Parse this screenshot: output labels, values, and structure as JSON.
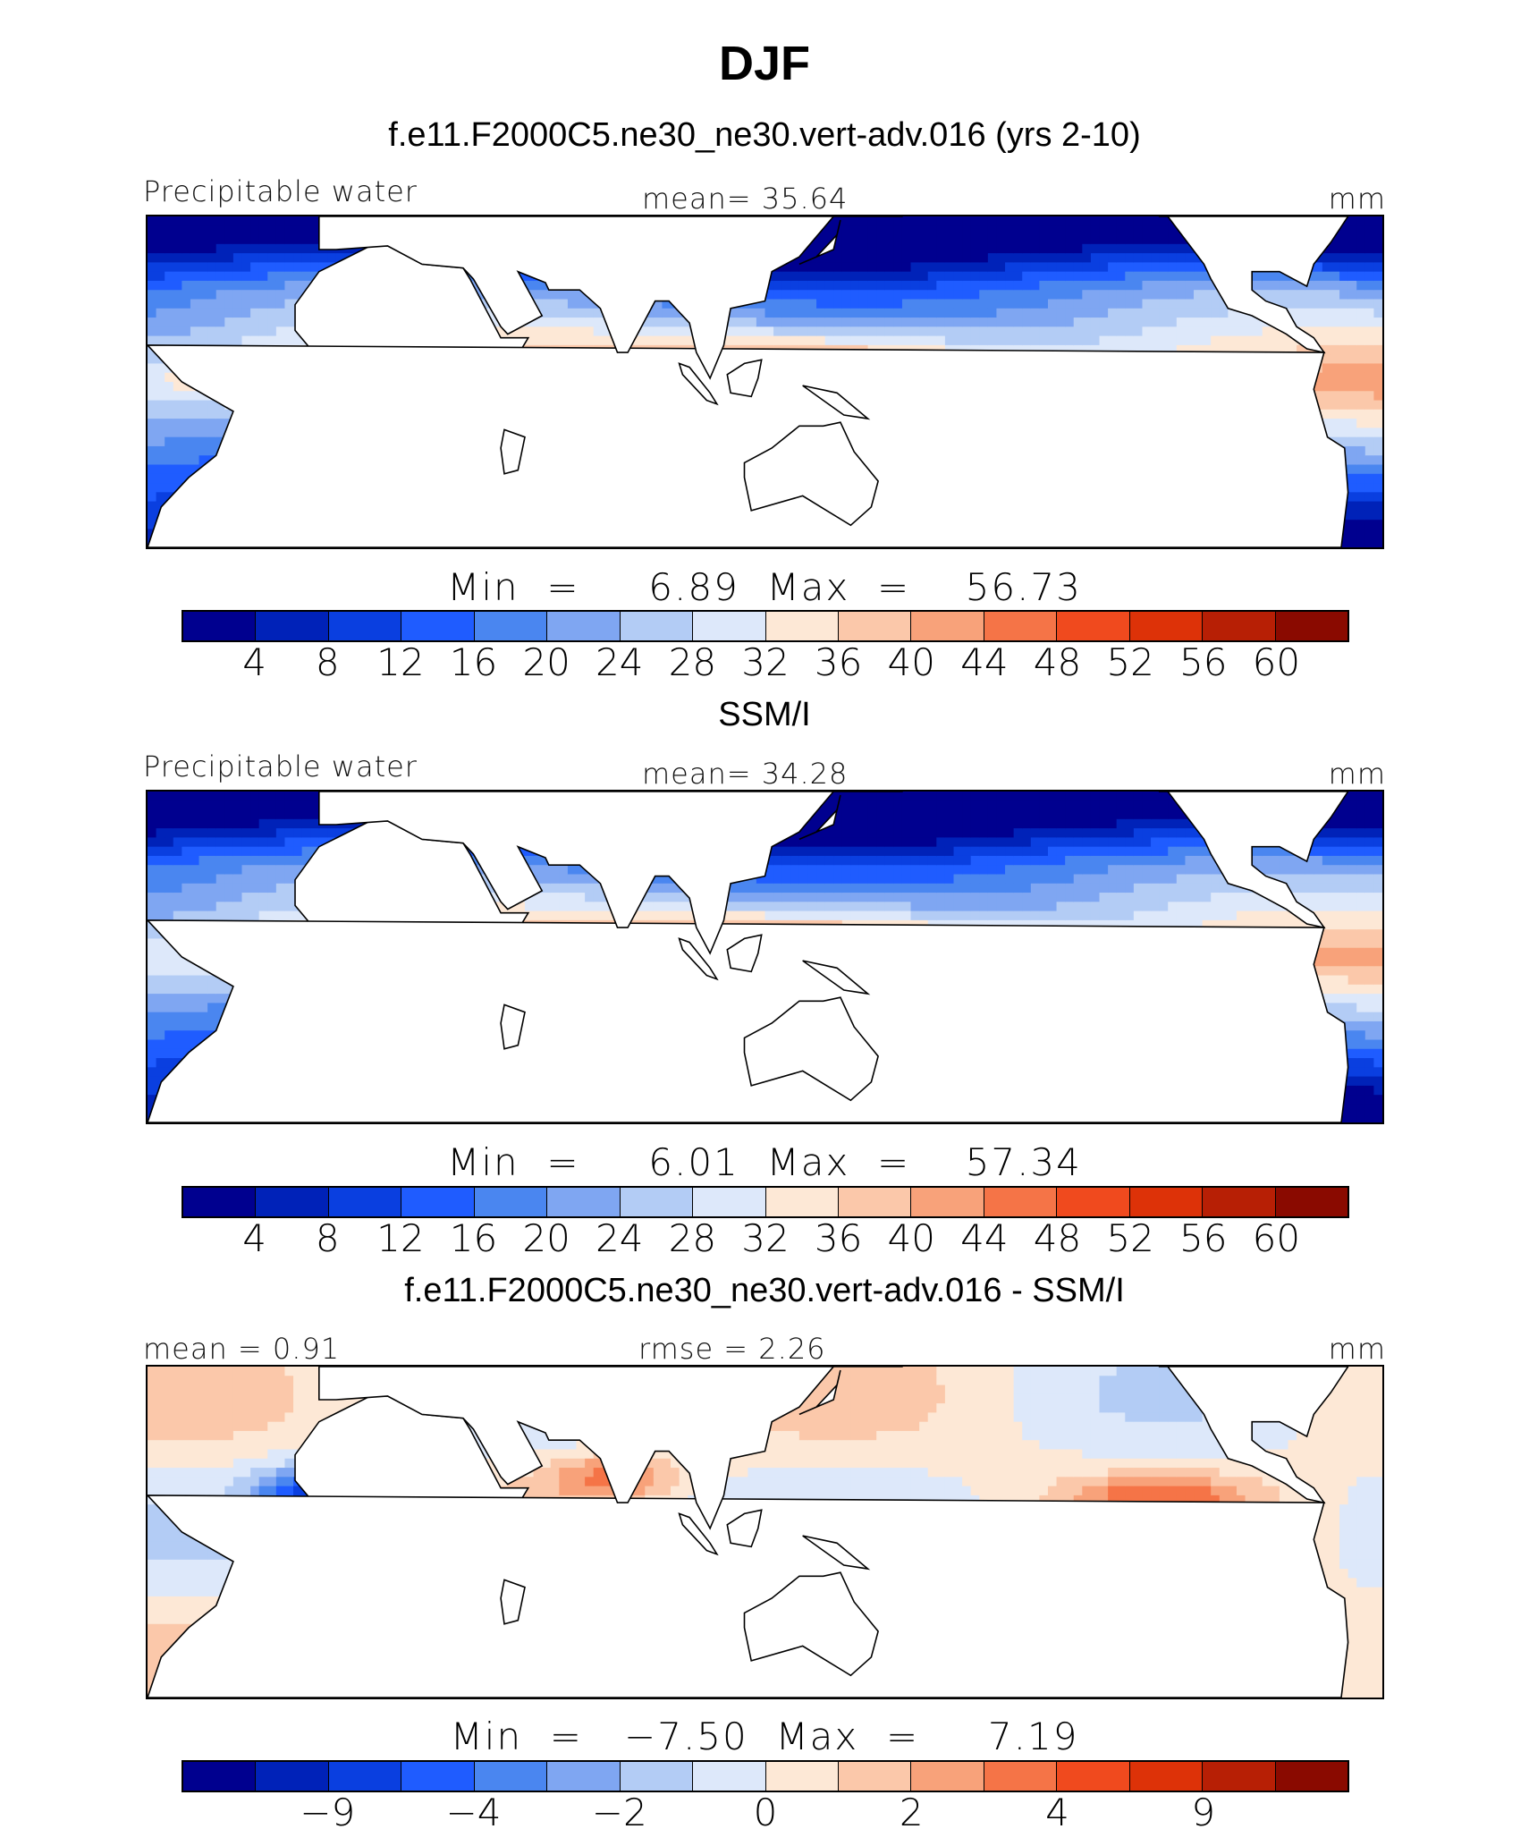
{
  "title": "DJF",
  "panels": [
    {
      "title": "f.e11.F2000C5.ne30_ne30.vert-adv.016 (yrs 2-10)",
      "left_label": "Precipitable water",
      "center_label": "mean=   35.64",
      "right_label": "mm",
      "minmax": "Min  =     6.89  Max  =    56.73",
      "colorbar_labels": [
        "4",
        "8",
        "12",
        "16",
        "20",
        "24",
        "28",
        "32",
        "36",
        "40",
        "44",
        "48",
        "52",
        "56",
        "60"
      ],
      "label_positions": [
        1,
        2,
        3,
        4,
        5,
        6,
        7,
        8,
        9,
        10,
        11,
        12,
        13,
        14,
        15
      ],
      "stats": {
        "mean": 35.64,
        "min": 6.89,
        "max": 56.73
      },
      "kind": "full"
    },
    {
      "title": "SSM/I",
      "left_label": "Precipitable water",
      "center_label": "mean=   34.28",
      "right_label": "mm",
      "minmax": "Min  =     6.01  Max  =    57.34",
      "colorbar_labels": [
        "4",
        "8",
        "12",
        "16",
        "20",
        "24",
        "28",
        "32",
        "36",
        "40",
        "44",
        "48",
        "52",
        "56",
        "60"
      ],
      "label_positions": [
        1,
        2,
        3,
        4,
        5,
        6,
        7,
        8,
        9,
        10,
        11,
        12,
        13,
        14,
        15
      ],
      "stats": {
        "mean": 34.28,
        "min": 6.01,
        "max": 57.34
      },
      "kind": "full"
    },
    {
      "title": "f.e11.F2000C5.ne30_ne30.vert-adv.016 - SSM/I",
      "left_label": "mean =    0.91",
      "center_label": "rmse =     2.26",
      "right_label": "mm",
      "minmax": "Min  =   −7.50  Max  =     7.19",
      "colorbar_labels": [
        "−9",
        "−4",
        "−2",
        "0",
        "2",
        "4",
        "9"
      ],
      "label_positions": [
        2,
        4,
        6,
        8,
        10,
        12,
        14
      ],
      "stats": {
        "mean": 0.91,
        "rmse": 2.26,
        "min": -7.5,
        "max": 7.19
      },
      "kind": "diff"
    }
  ],
  "palette": [
    "#00008f",
    "#0022b8",
    "#0a3fe0",
    "#1f5cff",
    "#4a86f0",
    "#7fa6f2",
    "#b3ccf5",
    "#dde8fa",
    "#fde8d6",
    "#fbc8aa",
    "#f8a27a",
    "#f57447",
    "#f04a1e",
    "#dd3208",
    "#b71f05",
    "#8a0a00"
  ]
}
